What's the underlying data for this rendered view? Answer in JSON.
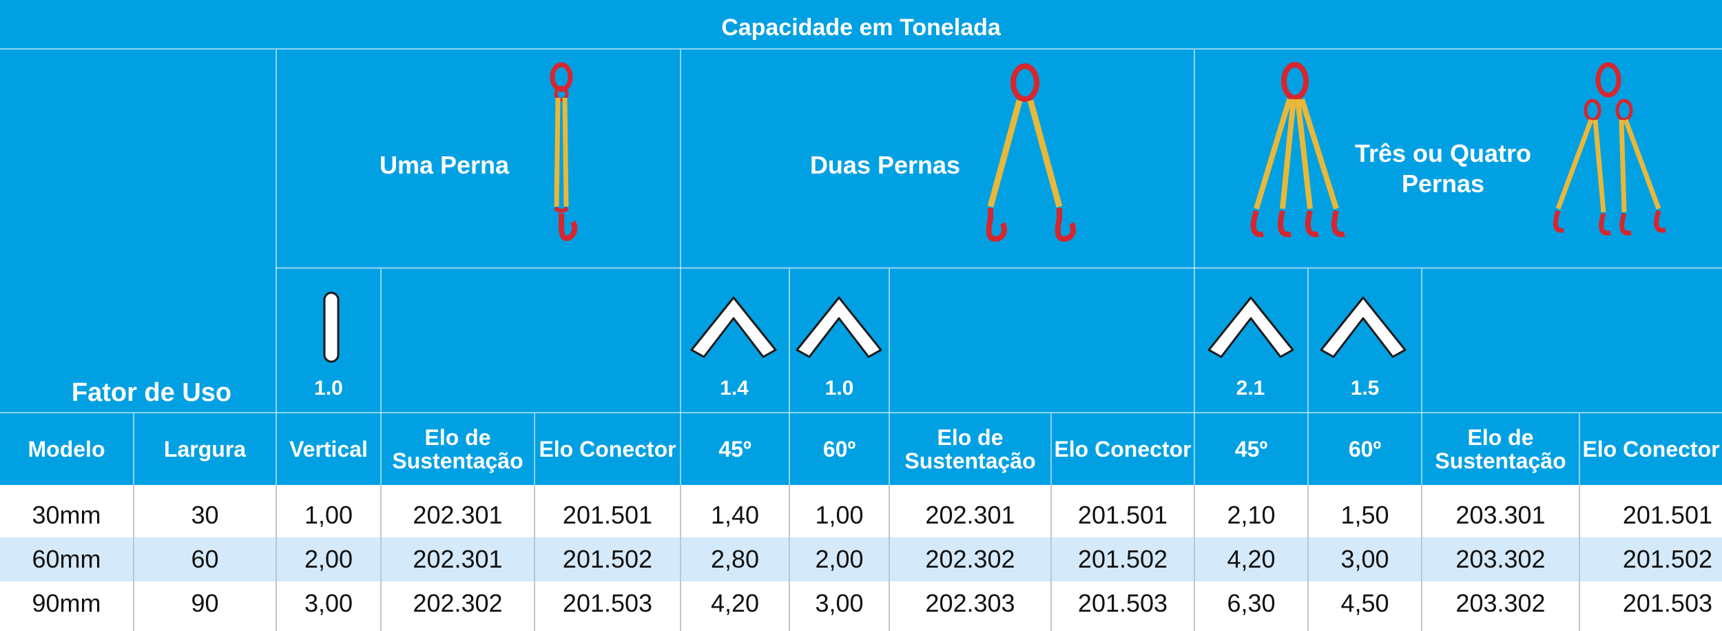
{
  "title": "Capacidade em Tonelada",
  "groups": [
    {
      "label": "Uma Perna"
    },
    {
      "label": "Duas Pernas"
    },
    {
      "label": "Três ou Quatro Pernas"
    }
  ],
  "usage_factor": {
    "label": "Fator de Uso",
    "values": [
      "1.0",
      "1.4",
      "1.0",
      "2.1",
      "1.5"
    ]
  },
  "colors": {
    "header_blue": "#00a0e3",
    "row_highlight": "#d4e9f9",
    "sling_yellow": "#e8b83a",
    "hook_red": "#d7262d"
  },
  "icons": [
    "single-leg-sling-icon",
    "two-leg-sling-icon",
    "four-leg-sling-icon",
    "three-leg-sling-icon",
    "vertical-angle-icon",
    "angle-chevron-icon"
  ],
  "columns": [
    "Modelo",
    "Largura",
    "Vertical",
    "Elo de Sustentação",
    "Elo Conector",
    "45º",
    "60º",
    "Elo de Sustentação",
    "Elo Conector",
    "45º",
    "60º",
    "Elo de Sustentação",
    "Elo Conector"
  ],
  "rows": [
    [
      "30mm",
      "30",
      "1,00",
      "202.301",
      "201.501",
      "1,40",
      "1,00",
      "202.301",
      "201.501",
      "2,10",
      "1,50",
      "203.301",
      "201.501"
    ],
    [
      "60mm",
      "60",
      "2,00",
      "202.301",
      "201.502",
      "2,80",
      "2,00",
      "202.302",
      "201.502",
      "4,20",
      "3,00",
      "203.302",
      "201.502"
    ],
    [
      "90mm",
      "90",
      "3,00",
      "202.302",
      "201.503",
      "4,20",
      "3,00",
      "202.303",
      "201.503",
      "6,30",
      "4,50",
      "203.302",
      "201.503"
    ]
  ]
}
